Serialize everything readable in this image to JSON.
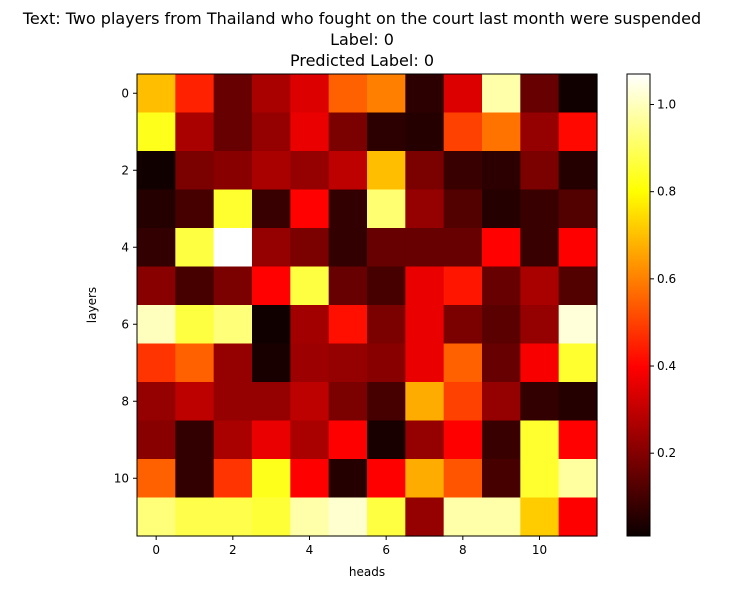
{
  "chart_data": {
    "type": "heatmap",
    "title_lines": [
      "Text: Two players from Thailand who fought on the court last month were suspended",
      "Label: 0",
      "Predicted Label: 0"
    ],
    "xlabel": "heads",
    "ylabel": "layers",
    "x_ticks": [
      0,
      2,
      4,
      6,
      8,
      10
    ],
    "y_ticks": [
      0,
      2,
      4,
      6,
      8,
      10
    ],
    "colormap": "hot",
    "vmin": 0.01,
    "vmax": 1.07,
    "colorbar_ticks": [
      0.2,
      0.4,
      0.6,
      0.8,
      1.0
    ],
    "colorbar_tick_labels": [
      "0.2",
      "0.4",
      "0.6",
      "0.8",
      "1.0"
    ],
    "values": [
      [
        0.7,
        0.45,
        0.15,
        0.25,
        0.33,
        0.55,
        0.6,
        0.06,
        0.33,
        0.98,
        0.15,
        0.02
      ],
      [
        0.83,
        0.25,
        0.15,
        0.22,
        0.35,
        0.18,
        0.06,
        0.05,
        0.5,
        0.58,
        0.22,
        0.41
      ],
      [
        0.02,
        0.18,
        0.2,
        0.25,
        0.22,
        0.28,
        0.7,
        0.18,
        0.08,
        0.06,
        0.18,
        0.05
      ],
      [
        0.05,
        0.1,
        0.85,
        0.08,
        0.4,
        0.07,
        0.92,
        0.22,
        0.12,
        0.05,
        0.08,
        0.12
      ],
      [
        0.07,
        0.87,
        1.07,
        0.22,
        0.18,
        0.07,
        0.15,
        0.15,
        0.15,
        0.4,
        0.08,
        0.38
      ],
      [
        0.2,
        0.1,
        0.18,
        0.4,
        0.87,
        0.15,
        0.1,
        0.35,
        0.43,
        0.15,
        0.25,
        0.12
      ],
      [
        1.0,
        0.87,
        0.93,
        0.02,
        0.24,
        0.42,
        0.18,
        0.35,
        0.18,
        0.13,
        0.22,
        1.03
      ],
      [
        0.48,
        0.55,
        0.22,
        0.03,
        0.23,
        0.22,
        0.2,
        0.35,
        0.55,
        0.15,
        0.37,
        0.85
      ],
      [
        0.22,
        0.28,
        0.22,
        0.22,
        0.28,
        0.18,
        0.1,
        0.67,
        0.5,
        0.22,
        0.07,
        0.05
      ],
      [
        0.2,
        0.07,
        0.25,
        0.35,
        0.25,
        0.38,
        0.03,
        0.22,
        0.38,
        0.08,
        0.85,
        0.4
      ],
      [
        0.55,
        0.07,
        0.48,
        0.83,
        0.38,
        0.05,
        0.38,
        0.67,
        0.53,
        0.1,
        0.85,
        0.97
      ],
      [
        0.93,
        0.88,
        0.88,
        0.86,
        0.98,
        1.02,
        0.87,
        0.22,
        0.98,
        0.98,
        0.72,
        0.38
      ]
    ]
  }
}
